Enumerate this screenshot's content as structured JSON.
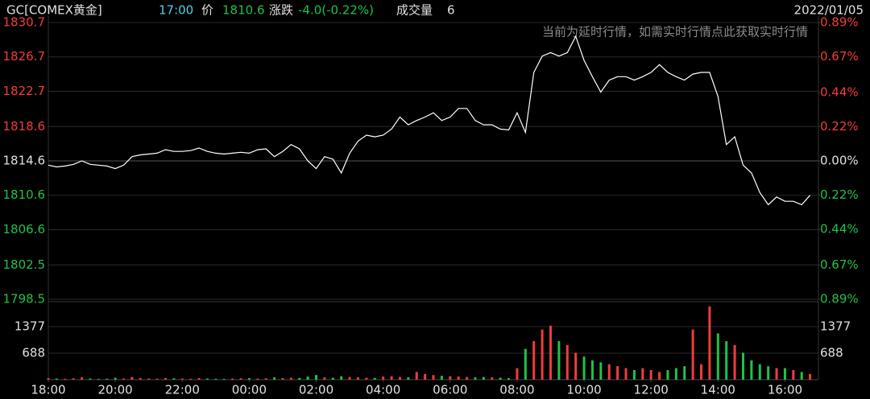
{
  "header": {
    "symbol": "GC[COMEX黄金]",
    "time": "17:00",
    "price_label": "价",
    "price": "1810.6",
    "change_label": "涨跌",
    "change": "-4.0(-0.22%)",
    "volume_label": "成交量",
    "volume": "6",
    "date": "2022/01/05",
    "notice": "当前为延时行情，如需实时行情点此获取实时行情"
  },
  "chart_data": [
    {
      "type": "line",
      "color": "#ffffff",
      "up_color": "#f03c3c",
      "down_color": "#1fc24a",
      "grid": true,
      "x": [
        0,
        0.25,
        0.5,
        0.75,
        1,
        1.25,
        1.5,
        1.75,
        2,
        2.25,
        2.5,
        2.75,
        3,
        3.25,
        3.5,
        3.75,
        4,
        4.25,
        4.5,
        4.75,
        5,
        5.25,
        5.5,
        5.75,
        6,
        6.25,
        6.5,
        6.75,
        7,
        7.25,
        7.5,
        7.75,
        8,
        8.25,
        8.5,
        8.75,
        9,
        9.25,
        9.5,
        9.75,
        10,
        10.25,
        10.5,
        10.75,
        11,
        11.25,
        11.5,
        11.75,
        12,
        12.25,
        12.5,
        12.75,
        13,
        13.25,
        13.5,
        13.75,
        14,
        14.25,
        14.5,
        14.75,
        15,
        15.25,
        15.5,
        15.75,
        16,
        16.25,
        16.5,
        16.75,
        17,
        17.25,
        17.5,
        17.75,
        18,
        18.25,
        18.5,
        18.75,
        19,
        19.25,
        19.5,
        19.75,
        20,
        20.25,
        20.5,
        20.75,
        21,
        21.25,
        21.5,
        21.75,
        22,
        22.25,
        22.5,
        22.75
      ],
      "values": [
        1814.1,
        1813.9,
        1814.0,
        1814.2,
        1814.6,
        1814.2,
        1814.1,
        1814.0,
        1813.7,
        1814.1,
        1815.1,
        1815.3,
        1815.4,
        1815.5,
        1815.9,
        1815.7,
        1815.7,
        1815.8,
        1816.1,
        1815.7,
        1815.5,
        1815.4,
        1815.5,
        1815.6,
        1815.5,
        1815.9,
        1816.0,
        1815.1,
        1815.7,
        1816.5,
        1816.0,
        1814.6,
        1813.7,
        1815.1,
        1814.8,
        1813.2,
        1815.5,
        1816.9,
        1817.6,
        1817.4,
        1817.6,
        1818.3,
        1819.7,
        1818.8,
        1819.3,
        1819.7,
        1820.2,
        1819.3,
        1819.7,
        1820.7,
        1820.7,
        1819.3,
        1818.8,
        1818.8,
        1818.3,
        1818.2,
        1820.2,
        1817.9,
        1824.9,
        1826.8,
        1827.2,
        1826.8,
        1827.2,
        1829.1,
        1826.3,
        1824.4,
        1822.6,
        1824.0,
        1824.4,
        1824.4,
        1824.0,
        1824.4,
        1824.9,
        1825.8,
        1824.9,
        1824.4,
        1824.0,
        1824.7,
        1824.9,
        1824.9,
        1822.1,
        1816.5,
        1817.4,
        1814.1,
        1813.2,
        1810.9,
        1809.5,
        1810.4,
        1809.9,
        1809.9,
        1809.5,
        1810.6
      ],
      "xlim": [
        0,
        23
      ],
      "xticks": [
        {
          "value": 0,
          "label": "18:00"
        },
        {
          "value": 2,
          "label": "20:00"
        },
        {
          "value": 4,
          "label": "22:00"
        },
        {
          "value": 6,
          "label": "00:00"
        },
        {
          "value": 8,
          "label": "02:00"
        },
        {
          "value": 10,
          "label": "04:00"
        },
        {
          "value": 12,
          "label": "06:00"
        },
        {
          "value": 14,
          "label": "08:00"
        },
        {
          "value": 16,
          "label": "10:00"
        },
        {
          "value": 18,
          "label": "12:00"
        },
        {
          "value": 20,
          "label": "14:00"
        },
        {
          "value": 22,
          "label": "16:00"
        }
      ],
      "ylim": [
        1798.5,
        1830.7
      ],
      "yticks": [
        1830.7,
        1826.7,
        1822.7,
        1818.6,
        1814.6,
        1810.6,
        1806.6,
        1802.5,
        1798.5
      ],
      "y2lim": [
        -0.89,
        0.89
      ],
      "y2ticks": [
        {
          "value": 0.89,
          "label": "0.89%"
        },
        {
          "value": 0.67,
          "label": "0.67%"
        },
        {
          "value": 0.44,
          "label": "0.44%"
        },
        {
          "value": 0.22,
          "label": "0.22%"
        },
        {
          "value": 0,
          "label": "0.00%"
        },
        {
          "value": -0.22,
          "label": "0.22%"
        },
        {
          "value": -0.44,
          "label": "0.44%"
        },
        {
          "value": -0.67,
          "label": "0.67%"
        },
        {
          "value": -0.89,
          "label": "0.89%"
        }
      ]
    },
    {
      "type": "bar",
      "values": [
        40,
        30,
        25,
        35,
        60,
        30,
        20,
        25,
        50,
        30,
        70,
        40,
        30,
        25,
        45,
        35,
        30,
        25,
        40,
        30,
        25,
        20,
        30,
        35,
        40,
        30,
        35,
        60,
        40,
        50,
        45,
        80,
        120,
        60,
        50,
        90,
        70,
        60,
        50,
        45,
        80,
        90,
        70,
        60,
        200,
        150,
        120,
        100,
        90,
        80,
        70,
        60,
        70,
        60,
        50,
        40,
        300,
        800,
        1000,
        1300,
        1400,
        1000,
        900,
        700,
        600,
        500,
        450,
        400,
        350,
        300,
        250,
        300,
        250,
        200,
        250,
        300,
        350,
        1300,
        400,
        1900,
        1200,
        1000,
        900,
        700,
        500,
        400,
        350,
        300,
        300,
        250,
        200,
        150
      ],
      "ylim": [
        0,
        1961
      ],
      "yticks": [
        688,
        1377
      ]
    }
  ]
}
